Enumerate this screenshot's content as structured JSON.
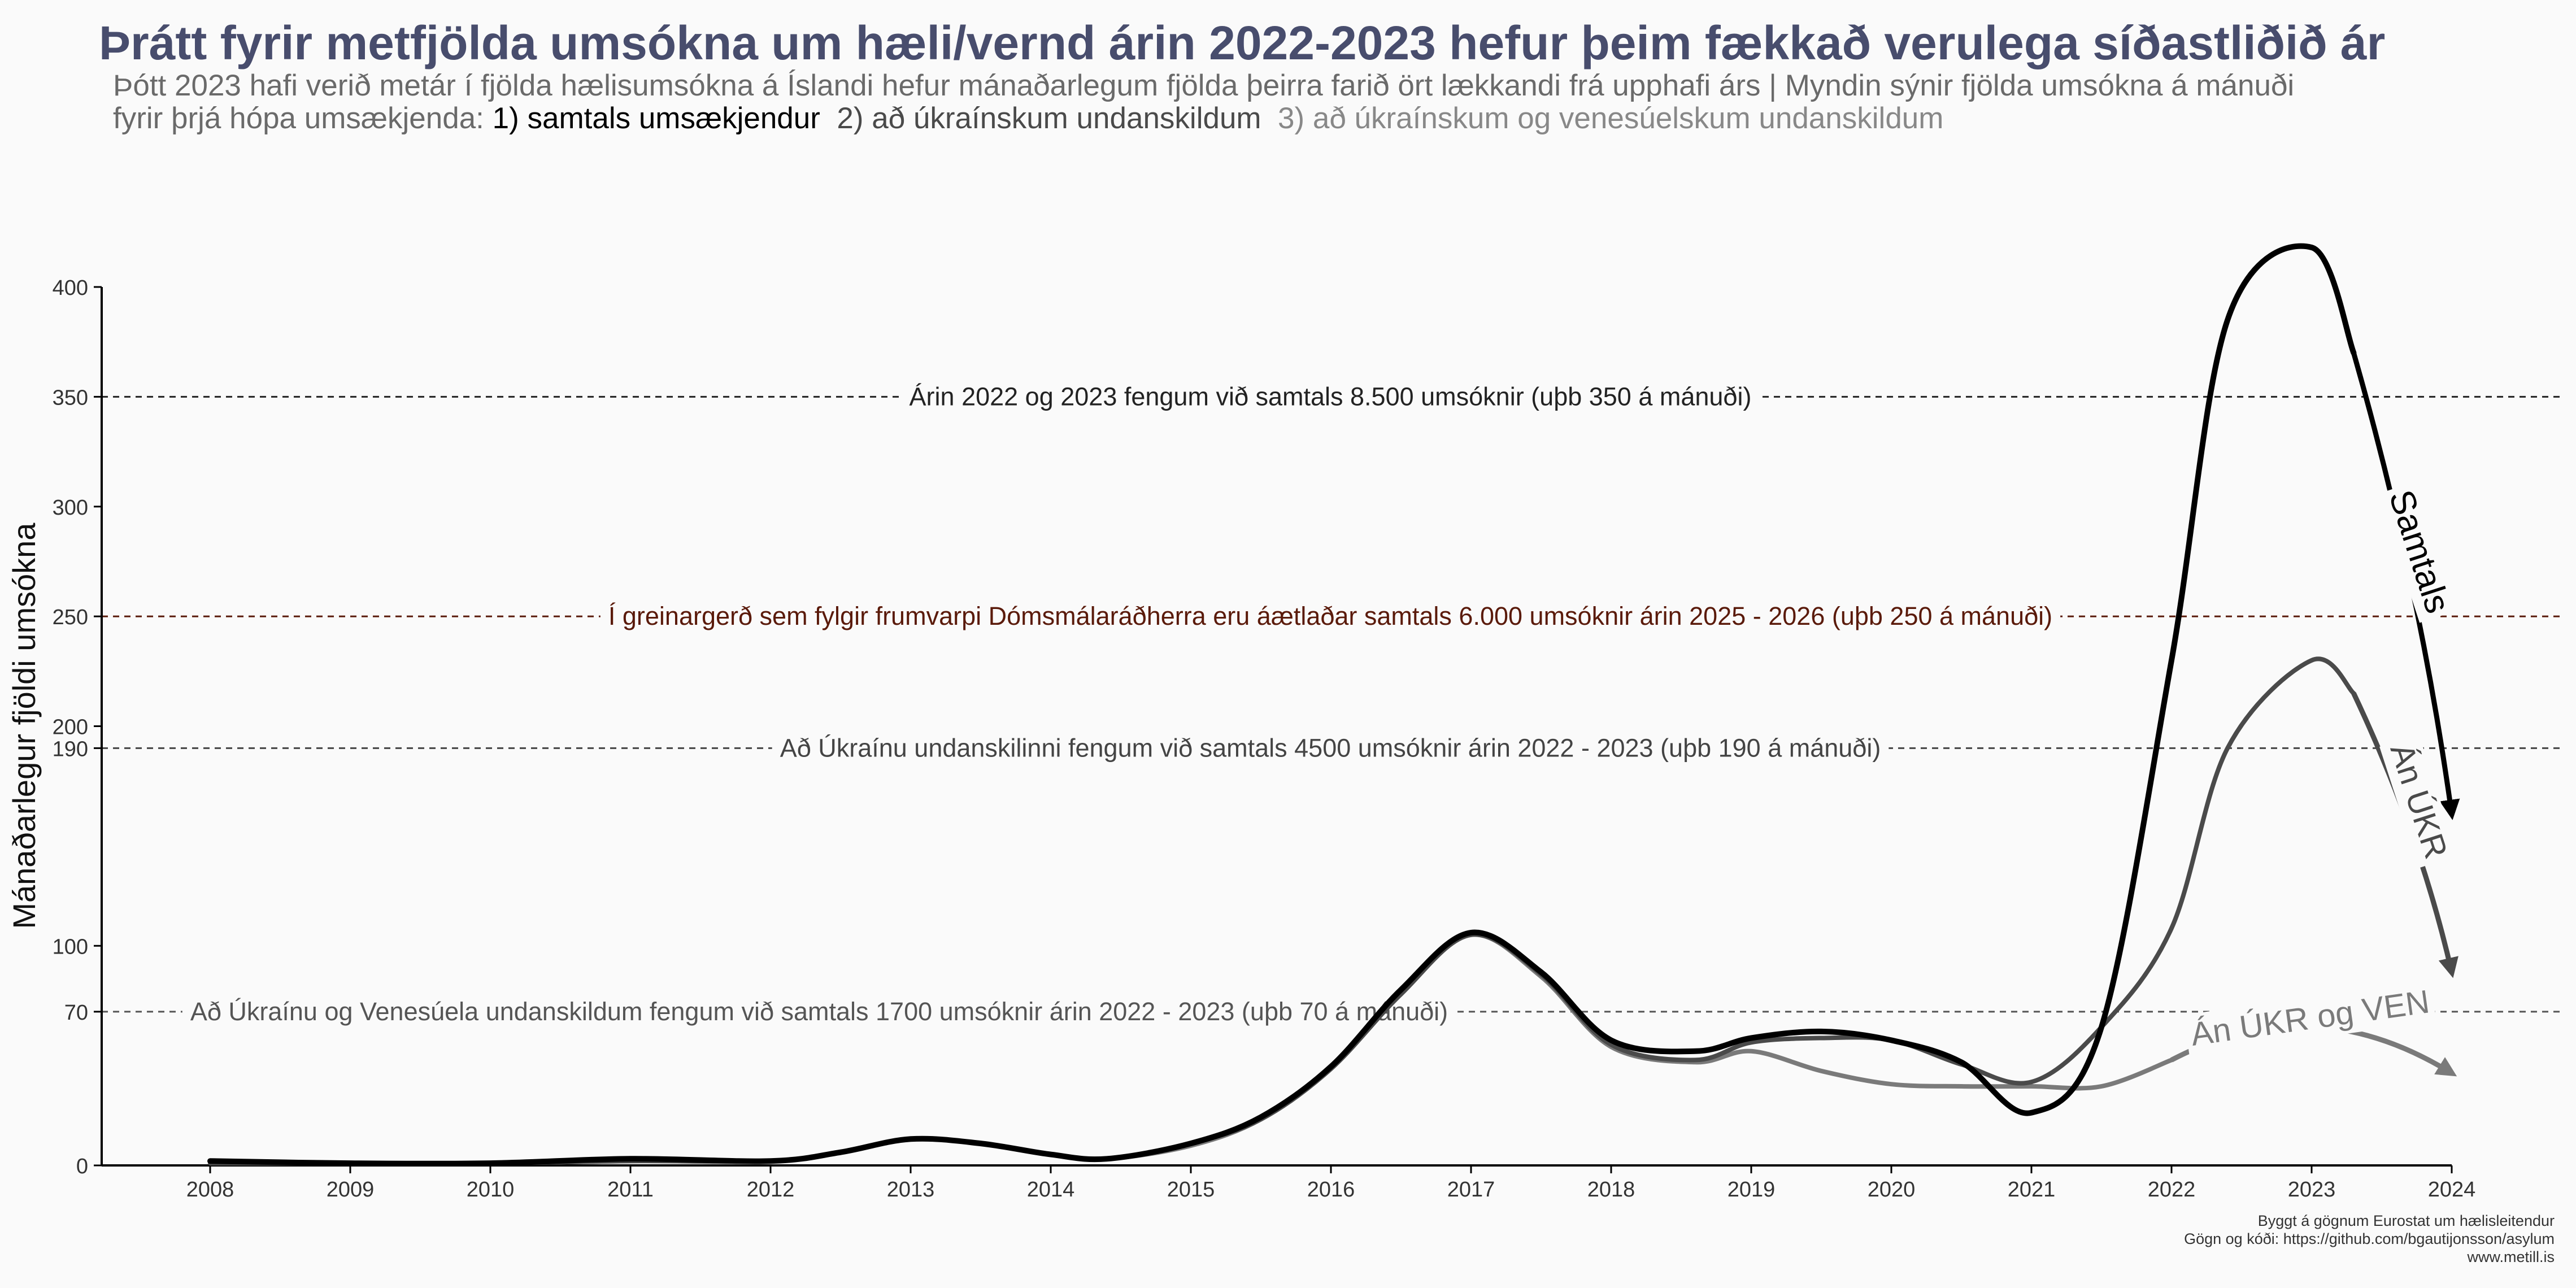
{
  "title": "Þrátt fyrir metfjölda umsókna um hæli/vernd árin 2022-2023 hefur þeim fækkað verulega síðastliðið ár",
  "subtitle": {
    "line1": "Þótt 2023 hafi verið metár í fjölda hælisumsókna á Íslandi hefur mánaðarlegum fjölda þeirra farið ört lækkandi frá upphafi árs | Myndin sýnir fjölda umsókna á mánuði",
    "line2_prefix": "fyrir þrjá hópa umsækjenda: ",
    "line2_part1": "1) samtals umsækjendur",
    "line2_part2": "2) að úkraínskum undanskildum",
    "line2_part3": "3) að úkraínskum og venesúelskum undanskildum"
  },
  "colors": {
    "title": "#484d6d",
    "subtitle": "#6a6a6a",
    "total": "#000000",
    "no_ukr": "#4a4a4a",
    "no_ukr_ven": "#7a7a7a",
    "reference": "#5a1a0a"
  },
  "chart_data": {
    "type": "line",
    "xlabel": "",
    "ylabel": "Mánaðarlegur fjöldi umsókna",
    "xlim": [
      2008,
      2024
    ],
    "ylim": [
      0,
      400
    ],
    "x_ticks": [
      2008,
      2009,
      2010,
      2011,
      2012,
      2013,
      2014,
      2015,
      2016,
      2017,
      2018,
      2019,
      2020,
      2021,
      2022,
      2023,
      2024
    ],
    "y_ticks": [
      0,
      70,
      100,
      190,
      200,
      250,
      300,
      350,
      400
    ],
    "grid": false,
    "series": [
      {
        "name": "Samtals",
        "color": "#000000",
        "points": [
          [
            2008,
            2
          ],
          [
            2009,
            1
          ],
          [
            2010,
            1
          ],
          [
            2011,
            3
          ],
          [
            2012,
            2
          ],
          [
            2012.5,
            6
          ],
          [
            2013,
            12
          ],
          [
            2013.5,
            10
          ],
          [
            2014,
            5
          ],
          [
            2014.4,
            3
          ],
          [
            2015,
            10
          ],
          [
            2015.5,
            22
          ],
          [
            2016,
            45
          ],
          [
            2016.5,
            80
          ],
          [
            2017,
            106
          ],
          [
            2017.5,
            88
          ],
          [
            2018,
            57
          ],
          [
            2018.6,
            52
          ],
          [
            2019,
            58
          ],
          [
            2019.5,
            61
          ],
          [
            2020,
            57
          ],
          [
            2020.5,
            47
          ],
          [
            2021,
            24
          ],
          [
            2021.5,
            63
          ],
          [
            2022,
            230
          ],
          [
            2022.4,
            385
          ],
          [
            2023,
            418
          ],
          [
            2023.3,
            370
          ]
        ]
      },
      {
        "name": "Án ÚKR",
        "color": "#4a4a4a",
        "points": [
          [
            2008,
            1
          ],
          [
            2009,
            1
          ],
          [
            2010,
            1
          ],
          [
            2011,
            2
          ],
          [
            2012,
            2
          ],
          [
            2012.5,
            6
          ],
          [
            2013,
            12
          ],
          [
            2013.5,
            10
          ],
          [
            2014,
            5
          ],
          [
            2014.4,
            3
          ],
          [
            2015,
            10
          ],
          [
            2015.5,
            21
          ],
          [
            2016,
            44
          ],
          [
            2016.5,
            78
          ],
          [
            2017,
            105
          ],
          [
            2017.5,
            87
          ],
          [
            2018,
            55
          ],
          [
            2018.6,
            48
          ],
          [
            2019,
            56
          ],
          [
            2019.5,
            58
          ],
          [
            2020,
            57
          ],
          [
            2020.5,
            46
          ],
          [
            2021,
            38
          ],
          [
            2021.5,
            63
          ],
          [
            2022,
            108
          ],
          [
            2022.4,
            190
          ],
          [
            2023,
            230
          ],
          [
            2023.3,
            215
          ]
        ]
      },
      {
        "name": "Án ÚKR og VEN",
        "color": "#7a7a7a",
        "points": [
          [
            2008,
            1
          ],
          [
            2009,
            1
          ],
          [
            2010,
            1
          ],
          [
            2011,
            2
          ],
          [
            2012,
            2
          ],
          [
            2012.5,
            6
          ],
          [
            2013,
            12
          ],
          [
            2013.5,
            10
          ],
          [
            2014,
            5
          ],
          [
            2014.4,
            3
          ],
          [
            2015,
            9
          ],
          [
            2015.5,
            21
          ],
          [
            2016,
            44
          ],
          [
            2016.5,
            78
          ],
          [
            2017,
            105
          ],
          [
            2017.5,
            86
          ],
          [
            2018,
            54
          ],
          [
            2018.6,
            47
          ],
          [
            2019,
            52
          ],
          [
            2019.5,
            43
          ],
          [
            2020,
            37
          ],
          [
            2020.5,
            36
          ],
          [
            2021,
            36
          ],
          [
            2021.5,
            36
          ],
          [
            2022,
            48
          ]
        ]
      }
    ],
    "reference_lines": [
      {
        "y": 350,
        "label": "Árin 2022 og 2023 fengum við samtals 8.500 umsóknir (uþb 350 á mánuði)",
        "color": "#222222"
      },
      {
        "y": 250,
        "label": "Í greinargerð sem fylgir frumvarpi Dómsmálaráðherra eru áætlaðar samtals 6.000 umsóknir árin 2025 - 2026 (uþb 250 á mánuði)",
        "color": "#5a1a0a"
      },
      {
        "y": 190,
        "label": "Að Úkraínu undanskilinni fengum við samtals 4500 umsóknir árin 2022 - 2023 (uþb 190 á mánuði)",
        "color": "#444444"
      },
      {
        "y": 70,
        "label": "Að Úkraínu og Venesúela undanskildum fengum við samtals 1700 umsóknir árin 2022 - 2023 (uþb 70 á mánuði)",
        "color": "#555555"
      }
    ],
    "arrows": [
      {
        "series": "Samtals",
        "label": "Samtals",
        "from": [
          2023.3,
          370
        ],
        "to": [
          2024,
          160
        ]
      },
      {
        "series": "Án ÚKR",
        "label": "Án ÚKR",
        "from": [
          2023.3,
          215
        ],
        "to": [
          2024,
          88
        ]
      },
      {
        "series": "Án ÚKR og VEN",
        "label": "Án ÚKR og VEN",
        "from": [
          2022,
          48
        ],
        "to": [
          2024,
          42
        ]
      }
    ]
  },
  "footer": {
    "line1": "Byggt á gögnum Eurostat um hælisleitendur",
    "line2": "Gögn og kóði:  https://github.com/bgautijonsson/asylum",
    "line3": "www.metill.is"
  }
}
